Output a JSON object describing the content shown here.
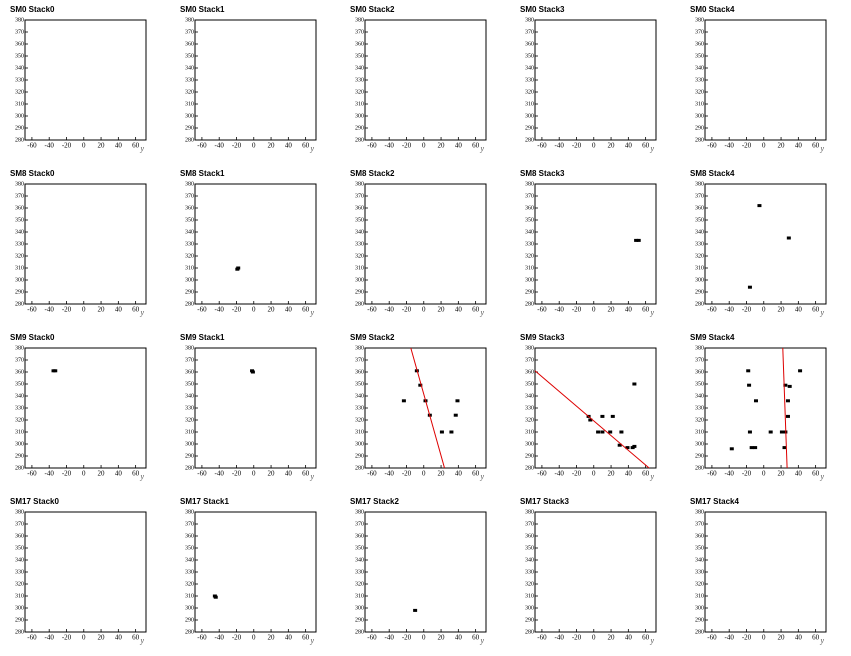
{
  "chart_data": [
    {
      "type": "scatter",
      "title": "SM0 Stack0",
      "x": [],
      "y": [],
      "xlim": [
        -68,
        72
      ],
      "ylim": [
        280,
        380
      ],
      "xticks": [
        -60,
        -40,
        -20,
        0,
        20,
        40,
        60
      ],
      "yticks": [
        280,
        290,
        300,
        310,
        320,
        330,
        340,
        350,
        360,
        370,
        380
      ],
      "xlabel": "y",
      "color": "#000000"
    },
    {
      "type": "scatter",
      "title": "SM0 Stack1",
      "x": [],
      "y": [],
      "xlim": [
        -68,
        72
      ],
      "ylim": [
        280,
        380
      ],
      "xticks": [
        -60,
        -40,
        -20,
        0,
        20,
        40,
        60
      ],
      "yticks": [
        280,
        290,
        300,
        310,
        320,
        330,
        340,
        350,
        360,
        370,
        380
      ],
      "xlabel": "y",
      "color": "#000000"
    },
    {
      "type": "scatter",
      "title": "SM0 Stack2",
      "x": [],
      "y": [],
      "xlim": [
        -68,
        72
      ],
      "ylim": [
        280,
        380
      ],
      "xticks": [
        -60,
        -40,
        -20,
        0,
        20,
        40,
        60
      ],
      "yticks": [
        280,
        290,
        300,
        310,
        320,
        330,
        340,
        350,
        360,
        370,
        380
      ],
      "xlabel": "y",
      "color": "#000000"
    },
    {
      "type": "scatter",
      "title": "SM0 Stack3",
      "x": [],
      "y": [],
      "xlim": [
        -68,
        72
      ],
      "ylim": [
        280,
        380
      ],
      "xticks": [
        -60,
        -40,
        -20,
        0,
        20,
        40,
        60
      ],
      "yticks": [
        280,
        290,
        300,
        310,
        320,
        330,
        340,
        350,
        360,
        370,
        380
      ],
      "xlabel": "y",
      "color": "#000000"
    },
    {
      "type": "scatter",
      "title": "SM0 Stack4",
      "x": [],
      "y": [],
      "xlim": [
        -68,
        72
      ],
      "ylim": [
        280,
        380
      ],
      "xticks": [
        -60,
        -40,
        -20,
        0,
        20,
        40,
        60
      ],
      "yticks": [
        280,
        290,
        300,
        310,
        320,
        330,
        340,
        350,
        360,
        370,
        380
      ],
      "xlabel": "y",
      "color": "#000000"
    },
    {
      "type": "scatter",
      "title": "SM8 Stack0",
      "x": [],
      "y": [],
      "xlim": [
        -68,
        72
      ],
      "ylim": [
        280,
        380
      ],
      "xticks": [
        -60,
        -40,
        -20,
        0,
        20,
        40,
        60
      ],
      "yticks": [
        280,
        290,
        300,
        310,
        320,
        330,
        340,
        350,
        360,
        370,
        380
      ],
      "xlabel": "y",
      "color": "#000000"
    },
    {
      "type": "scatter",
      "title": "SM8 Stack1",
      "x": [
        -19,
        -18
      ],
      "y": [
        309,
        310
      ],
      "xlim": [
        -68,
        72
      ],
      "ylim": [
        280,
        380
      ],
      "xticks": [
        -60,
        -40,
        -20,
        0,
        20,
        40,
        60
      ],
      "yticks": [
        280,
        290,
        300,
        310,
        320,
        330,
        340,
        350,
        360,
        370,
        380
      ],
      "xlabel": "y",
      "color": "#000000"
    },
    {
      "type": "scatter",
      "title": "SM8 Stack2",
      "x": [],
      "y": [],
      "xlim": [
        -68,
        72
      ],
      "ylim": [
        280,
        380
      ],
      "xticks": [
        -60,
        -40,
        -20,
        0,
        20,
        40,
        60
      ],
      "yticks": [
        280,
        290,
        300,
        310,
        320,
        330,
        340,
        350,
        360,
        370,
        380
      ],
      "xlabel": "y",
      "color": "#000000"
    },
    {
      "type": "scatter",
      "title": "SM8 Stack3",
      "x": [
        49,
        52
      ],
      "y": [
        333,
        333
      ],
      "xlim": [
        -68,
        72
      ],
      "ylim": [
        280,
        380
      ],
      "xticks": [
        -60,
        -40,
        -20,
        0,
        20,
        40,
        60
      ],
      "yticks": [
        280,
        290,
        300,
        310,
        320,
        330,
        340,
        350,
        360,
        370,
        380
      ],
      "xlabel": "y",
      "color": "#000000"
    },
    {
      "type": "scatter",
      "title": "SM8 Stack4",
      "x": [
        -5,
        29,
        -16
      ],
      "y": [
        362,
        335,
        294
      ],
      "xlim": [
        -68,
        72
      ],
      "ylim": [
        280,
        380
      ],
      "xticks": [
        -60,
        -40,
        -20,
        0,
        20,
        40,
        60
      ],
      "yticks": [
        280,
        290,
        300,
        310,
        320,
        330,
        340,
        350,
        360,
        370,
        380
      ],
      "xlabel": "y",
      "color": "#000000"
    },
    {
      "type": "scatter",
      "title": "SM9 Stack0",
      "x": [
        -35,
        -33
      ],
      "y": [
        361,
        361
      ],
      "xlim": [
        -68,
        72
      ],
      "ylim": [
        280,
        380
      ],
      "xticks": [
        -60,
        -40,
        -20,
        0,
        20,
        40,
        60
      ],
      "yticks": [
        280,
        290,
        300,
        310,
        320,
        330,
        340,
        350,
        360,
        370,
        380
      ],
      "xlabel": "y",
      "color": "#000000"
    },
    {
      "type": "scatter",
      "title": "SM9 Stack1",
      "x": [
        -2,
        -1
      ],
      "y": [
        361,
        360
      ],
      "xlim": [
        -68,
        72
      ],
      "ylim": [
        280,
        380
      ],
      "xticks": [
        -60,
        -40,
        -20,
        0,
        20,
        40,
        60
      ],
      "yticks": [
        280,
        290,
        300,
        310,
        320,
        330,
        340,
        350,
        360,
        370,
        380
      ],
      "xlabel": "y",
      "color": "#000000"
    },
    {
      "type": "scatter",
      "title": "SM9 Stack2",
      "x": [
        -23,
        -8,
        -4,
        2,
        7,
        21,
        32,
        37,
        39
      ],
      "y": [
        336,
        361,
        349,
        336,
        324,
        310,
        310,
        324,
        336
      ],
      "xlim": [
        -68,
        72
      ],
      "ylim": [
        280,
        380
      ],
      "xticks": [
        -60,
        -40,
        -20,
        0,
        20,
        40,
        60
      ],
      "yticks": [
        280,
        290,
        300,
        310,
        320,
        330,
        340,
        350,
        360,
        370,
        380
      ],
      "xlabel": "y",
      "color": "#000000",
      "fit": {
        "color": "#dd0000",
        "x": [
          -15,
          24
        ],
        "y": [
          380,
          280
        ]
      }
    },
    {
      "type": "scatter",
      "title": "SM9 Stack3",
      "x": [
        -6,
        -4,
        10,
        22,
        5,
        10,
        19,
        32,
        45,
        39,
        47,
        47,
        30
      ],
      "y": [
        323,
        320,
        323,
        323,
        310,
        310,
        310,
        310,
        297,
        297,
        298,
        350,
        299
      ],
      "xlim": [
        -68,
        72
      ],
      "ylim": [
        280,
        380
      ],
      "xticks": [
        -60,
        -40,
        -20,
        0,
        20,
        40,
        60
      ],
      "yticks": [
        280,
        290,
        300,
        310,
        320,
        330,
        340,
        350,
        360,
        370,
        380
      ],
      "xlabel": "y",
      "color": "#000000",
      "fit": {
        "color": "#dd0000",
        "x": [
          -68,
          64
        ],
        "y": [
          361,
          280
        ]
      }
    },
    {
      "type": "scatter",
      "title": "SM9 Stack4",
      "x": [
        -18,
        -16,
        -14,
        -9,
        8,
        21,
        25,
        28,
        30,
        42,
        28,
        25,
        -37,
        -10,
        -17,
        24
      ],
      "y": [
        361,
        310,
        297,
        336,
        310,
        310,
        349,
        336,
        348,
        361,
        323,
        310,
        296,
        297,
        349,
        297
      ],
      "xlim": [
        -68,
        72
      ],
      "ylim": [
        280,
        380
      ],
      "xticks": [
        -60,
        -40,
        -20,
        0,
        20,
        40,
        60
      ],
      "yticks": [
        280,
        290,
        300,
        310,
        320,
        330,
        340,
        350,
        360,
        370,
        380
      ],
      "xlabel": "y",
      "color": "#000000",
      "fit": {
        "color": "#dd0000",
        "x": [
          22,
          27
        ],
        "y": [
          380,
          280
        ]
      }
    },
    {
      "type": "scatter",
      "title": "SM17 Stack0",
      "x": [],
      "y": [],
      "xlim": [
        -68,
        72
      ],
      "ylim": [
        280,
        380
      ],
      "xticks": [
        -60,
        -40,
        -20,
        0,
        20,
        40,
        60
      ],
      "yticks": [
        280,
        290,
        300,
        310,
        320,
        330,
        340,
        350,
        360,
        370,
        380
      ],
      "xlabel": "y",
      "color": "#000000"
    },
    {
      "type": "scatter",
      "title": "SM17 Stack1",
      "x": [
        -45,
        -44
      ],
      "y": [
        310,
        309
      ],
      "xlim": [
        -68,
        72
      ],
      "ylim": [
        280,
        380
      ],
      "xticks": [
        -60,
        -40,
        -20,
        0,
        20,
        40,
        60
      ],
      "yticks": [
        280,
        290,
        300,
        310,
        320,
        330,
        340,
        350,
        360,
        370,
        380
      ],
      "xlabel": "y",
      "color": "#000000"
    },
    {
      "type": "scatter",
      "title": "SM17 Stack2",
      "x": [
        -10
      ],
      "y": [
        298
      ],
      "xlim": [
        -68,
        72
      ],
      "ylim": [
        280,
        380
      ],
      "xticks": [
        -60,
        -40,
        -20,
        0,
        20,
        40,
        60
      ],
      "yticks": [
        280,
        290,
        300,
        310,
        320,
        330,
        340,
        350,
        360,
        370,
        380
      ],
      "xlabel": "y",
      "color": "#000000"
    },
    {
      "type": "scatter",
      "title": "SM17 Stack3",
      "x": [],
      "y": [],
      "xlim": [
        -68,
        72
      ],
      "ylim": [
        280,
        380
      ],
      "xticks": [
        -60,
        -40,
        -20,
        0,
        20,
        40,
        60
      ],
      "yticks": [
        280,
        290,
        300,
        310,
        320,
        330,
        340,
        350,
        360,
        370,
        380
      ],
      "xlabel": "y",
      "color": "#000000"
    },
    {
      "type": "scatter",
      "title": "SM17 Stack4",
      "x": [],
      "y": [],
      "xlim": [
        -68,
        72
      ],
      "ylim": [
        280,
        380
      ],
      "xticks": [
        -60,
        -40,
        -20,
        0,
        20,
        40,
        60
      ],
      "yticks": [
        280,
        290,
        300,
        310,
        320,
        330,
        340,
        350,
        360,
        370,
        380
      ],
      "xlabel": "y",
      "color": "#000000"
    }
  ]
}
